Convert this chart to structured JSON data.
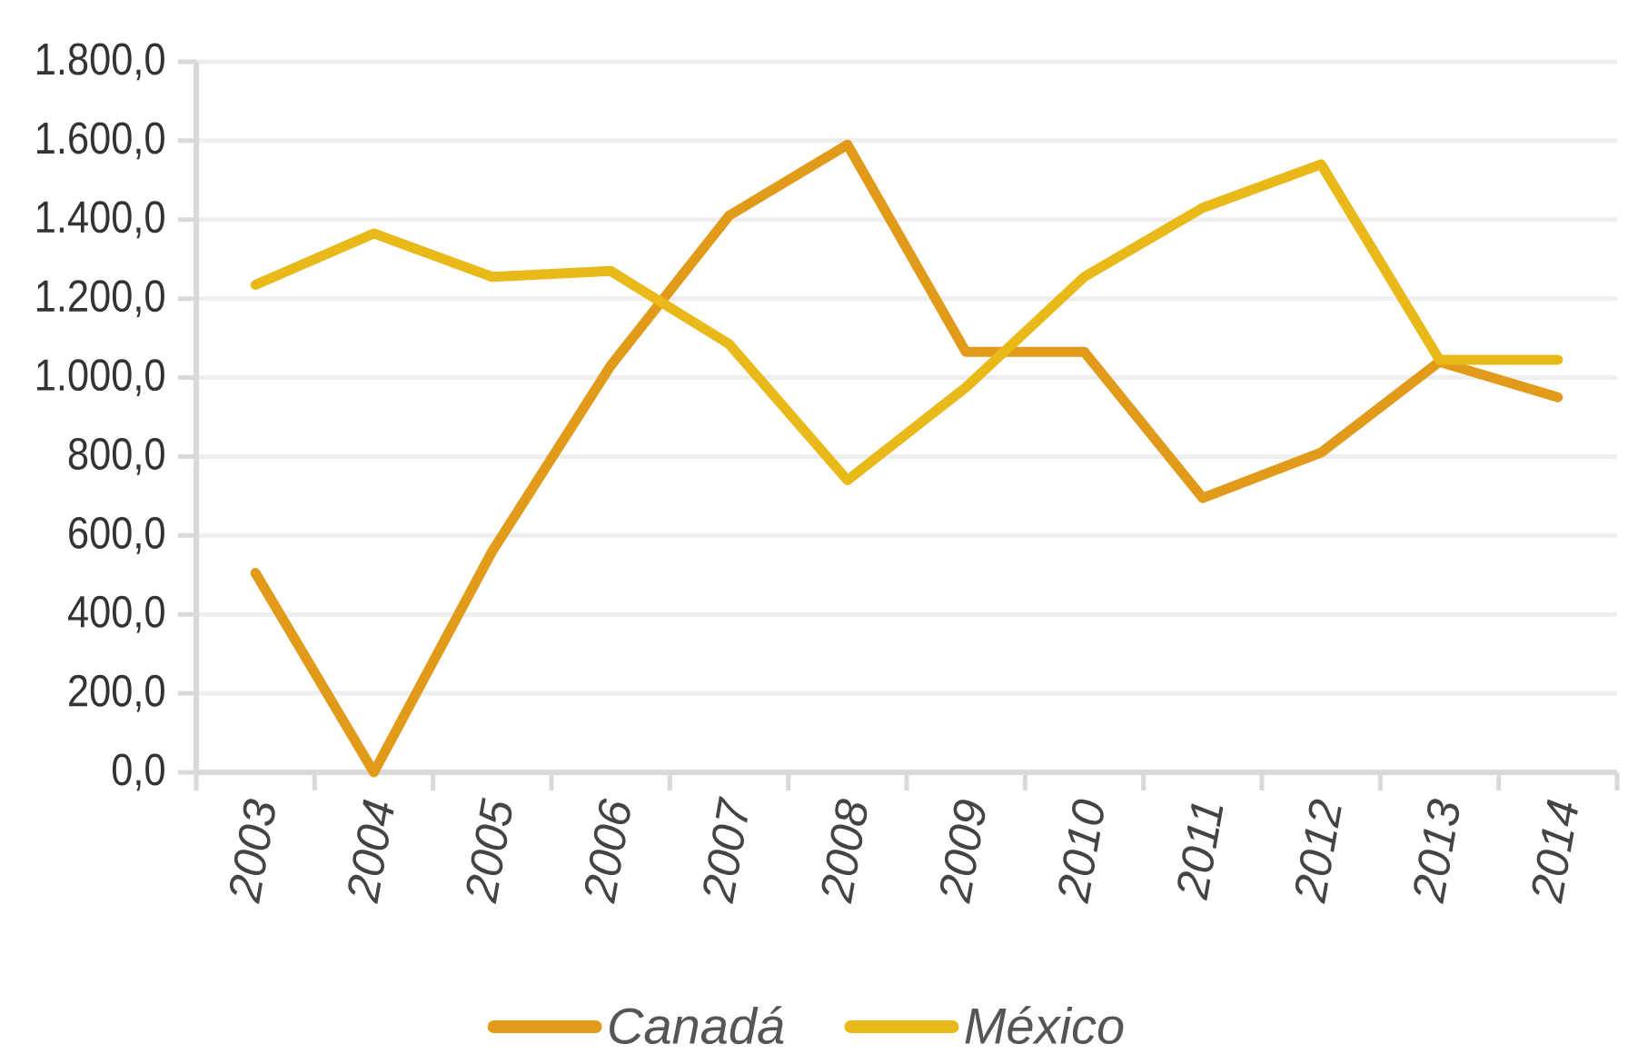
{
  "chart_data": {
    "type": "line",
    "categories": [
      "2003",
      "2004",
      "2005",
      "2006",
      "2007",
      "2008",
      "2009",
      "2010",
      "2011",
      "2012",
      "2013",
      "2014"
    ],
    "series": [
      {
        "name": "Canadá",
        "color": "#e29a1a",
        "values": [
          505,
          0,
          560,
          1030,
          1410,
          1590,
          1065,
          1065,
          695,
          810,
          1040,
          950
        ]
      },
      {
        "name": "México",
        "color": "#e8b918",
        "values": [
          1235,
          1365,
          1255,
          1270,
          1085,
          740,
          975,
          1255,
          1430,
          1540,
          1045,
          1045
        ]
      }
    ],
    "ylim": [
      0,
      1800
    ],
    "yticks": [
      {
        "value": 0,
        "label": "0,0"
      },
      {
        "value": 200,
        "label": "200,0"
      },
      {
        "value": 400,
        "label": "400,0"
      },
      {
        "value": 600,
        "label": "600,0"
      },
      {
        "value": 800,
        "label": "800,0"
      },
      {
        "value": 1000,
        "label": "1.000,0"
      },
      {
        "value": 1200,
        "label": "1.200,0"
      },
      {
        "value": 1400,
        "label": "1.400,0"
      },
      {
        "value": 1600,
        "label": "1.600,0"
      },
      {
        "value": 1800,
        "label": "1.800,0"
      }
    ],
    "grid": "y",
    "legend": "bottom",
    "line_style": "solid"
  }
}
